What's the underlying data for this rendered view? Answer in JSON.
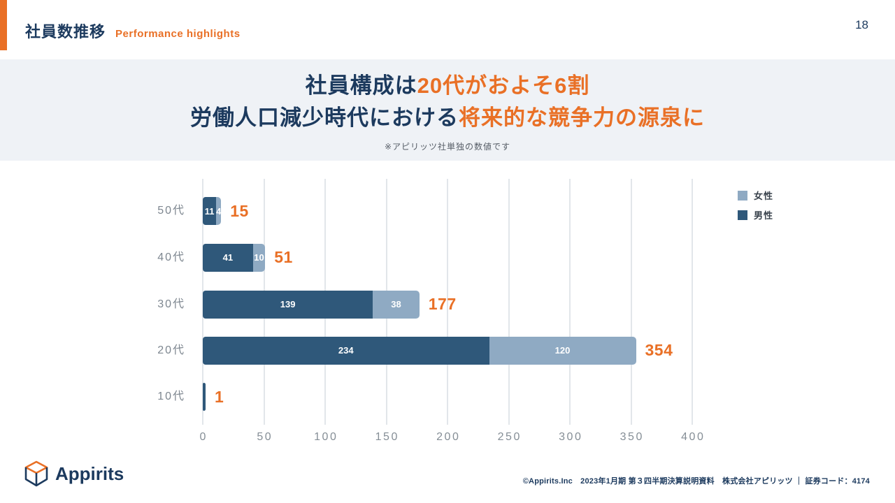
{
  "header": {
    "title": "社員数推移",
    "subtitle": "Performance highlights",
    "page_number": "18"
  },
  "banner": {
    "line1_navy": "社員構成は",
    "line1_orange": "20代がおよそ6割",
    "line2_navy": "労働人口減少時代における",
    "line2_orange": "将来的な競争力の源泉に",
    "note": "※アピリッツ社単独の数値です"
  },
  "chart_data": {
    "type": "bar",
    "orientation": "horizontal",
    "stacked": true,
    "categories": [
      "50代",
      "40代",
      "30代",
      "20代",
      "10代"
    ],
    "series": [
      {
        "name": "男性",
        "color": "#2F587A",
        "values": [
          11,
          41,
          139,
          234,
          1
        ]
      },
      {
        "name": "女性",
        "color": "#8FAAC3",
        "values": [
          4,
          10,
          38,
          120,
          0
        ]
      }
    ],
    "totals": [
      15,
      51,
      177,
      354,
      1
    ],
    "x_ticks": [
      0,
      50,
      100,
      150,
      200,
      250,
      300,
      350,
      400
    ],
    "xlim": [
      0,
      400
    ],
    "grid": true,
    "legend": [
      {
        "label": "女性",
        "color": "#8FAAC3"
      },
      {
        "label": "男性",
        "color": "#2F587A"
      }
    ],
    "legend_position": "top-right",
    "colors": {
      "total_label": "#E97026",
      "segment_label": "#FFFFFF",
      "gridline": "#E2E6EA",
      "axis_text": "#858E96",
      "category_text": "#7E8790"
    }
  },
  "footer": {
    "logo_text": "Appirits",
    "copyright": "©Appirits.Inc　2023年1月期 第３四半期決算説明資料　株式会社アピリッツ ｜ 証券コード：4174"
  },
  "theme": {
    "accent_orange": "#E97026",
    "navy": "#1C3A5E",
    "banner_bg": "#EFF2F6"
  }
}
